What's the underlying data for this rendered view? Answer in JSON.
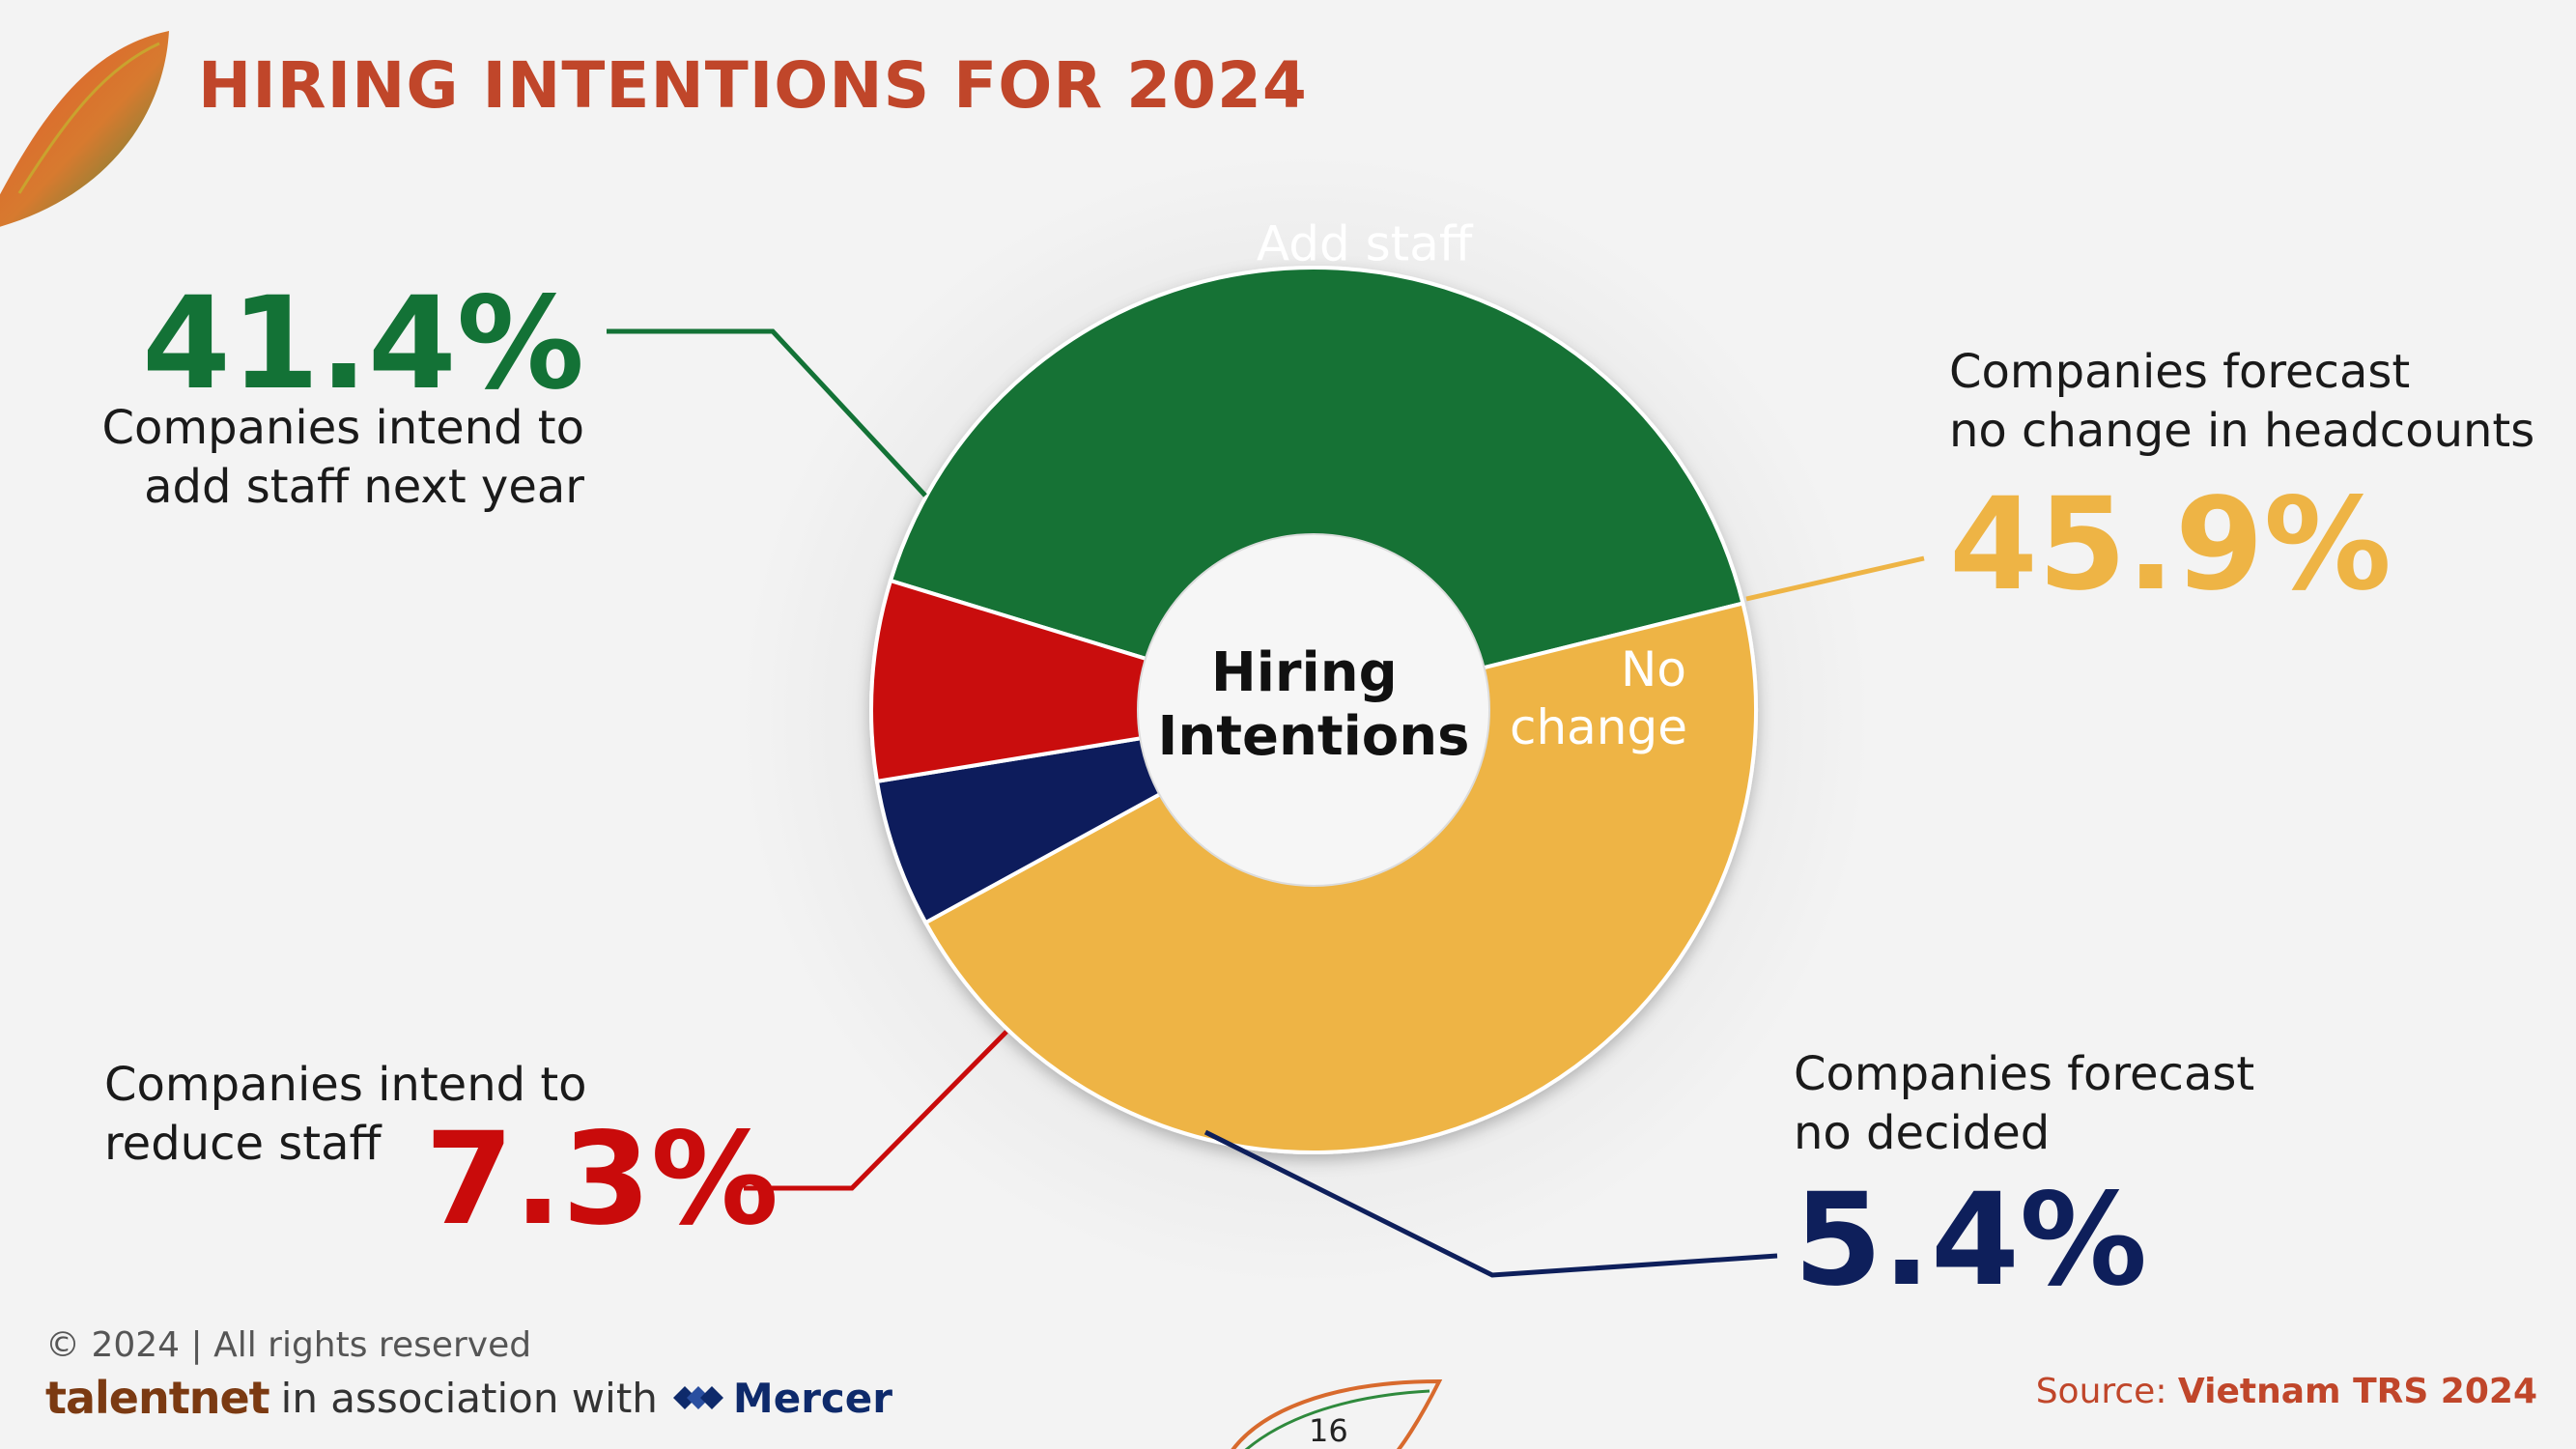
{
  "header": {
    "title": "HIRING INTENTIONS FOR 2024"
  },
  "chart_data": {
    "type": "pie",
    "title": "",
    "center_label": [
      "Hiring",
      "Intentions"
    ],
    "slices": [
      {
        "label": "Add staff",
        "value": 41.4,
        "display": "41.4%",
        "color": "#137236",
        "description": [
          "Companies intend to",
          "add staff next year"
        ]
      },
      {
        "label": "No change",
        "label_lines": [
          "No",
          "change"
        ],
        "value": 45.9,
        "display": "45.9%",
        "color": "#eeb445",
        "description": [
          "Companies forecast",
          "no change in headcounts"
        ]
      },
      {
        "label": "",
        "value": 5.4,
        "display": "5.4%",
        "color": "#0e1f5b",
        "description": [
          "Companies forecast",
          "no decided"
        ]
      },
      {
        "label": "",
        "value": 7.3,
        "display": "7.3%",
        "color": "#c90b0b",
        "description": [
          "Companies intend to",
          "reduce staff"
        ]
      }
    ]
  },
  "footer": {
    "copyright": "© 2024 | All rights reserved",
    "brand": "talentnet",
    "association": "in association with",
    "partner": "Mercer",
    "source_label": "Source: ",
    "source_name": "Vietnam TRS 2024",
    "page_number": "16"
  },
  "icons": {
    "corner": "leaf-logo-icon",
    "page": "leaf-page-icon",
    "partner": "mercer-logo-icon"
  },
  "colors": {
    "accent": "#c0462a",
    "background": "#f3f3f3"
  }
}
